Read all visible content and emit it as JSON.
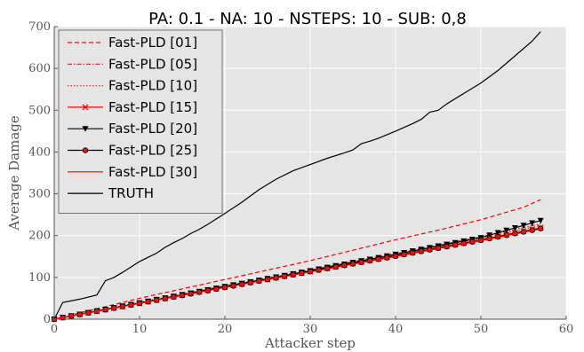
{
  "chart_data": {
    "type": "line",
    "title": "PA: 0.1 - NA: 10 - NSTEPS: 10 - SUB: 0,8",
    "xlabel": "Attacker step",
    "ylabel": "Average Damage",
    "xlim": [
      0,
      60
    ],
    "ylim": [
      0,
      700
    ],
    "xticks": [
      "0",
      "10",
      "20",
      "30",
      "40",
      "50",
      "60"
    ],
    "yticks": [
      "0",
      "100",
      "200",
      "300",
      "400",
      "500",
      "600",
      "700"
    ],
    "grid": true,
    "legend_position": "top-left",
    "background": "#e5e5e5",
    "series": [
      {
        "name": "Fast-PLD [01]",
        "color": "#ff0000",
        "dash": "dashed",
        "marker": "none",
        "x": [
          0,
          10,
          20,
          30,
          40,
          45,
          50,
          55,
          57
        ],
        "y": [
          0,
          50,
          95,
          140,
          190,
          213,
          238,
          268,
          286
        ]
      },
      {
        "name": "Fast-PLD [05]",
        "color": "#cc2222",
        "dash": "dashdot",
        "marker": "none",
        "x": [
          0,
          10,
          20,
          30,
          40,
          50,
          57
        ],
        "y": [
          0,
          40,
          80,
          118,
          157,
          197,
          228
        ]
      },
      {
        "name": "Fast-PLD [10]",
        "color": "#ff3333",
        "dash": "dotted",
        "marker": "none",
        "x": [
          0,
          10,
          20,
          30,
          40,
          50,
          57
        ],
        "y": [
          0,
          39,
          78,
          116,
          154,
          193,
          224
        ]
      },
      {
        "name": "Fast-PLD [15]",
        "color": "#ff0000",
        "dash": "solid",
        "marker": "x",
        "x": [
          0,
          10,
          20,
          30,
          40,
          50,
          57
        ],
        "y": [
          0,
          38,
          77,
          114,
          152,
          190,
          219
        ]
      },
      {
        "name": "Fast-PLD [20]",
        "color": "#000000",
        "dash": "solid",
        "marker": "triangle-down",
        "x": [
          0,
          10,
          20,
          30,
          40,
          50,
          57
        ],
        "y": [
          0,
          39,
          78,
          116,
          155,
          195,
          236
        ]
      },
      {
        "name": "Fast-PLD [25]",
        "color": "#000000",
        "dash": "solid",
        "marker": "circle",
        "x": [
          0,
          10,
          20,
          30,
          40,
          50,
          57
        ],
        "y": [
          0,
          38,
          76,
          114,
          151,
          189,
          217
        ]
      },
      {
        "name": "Fast-PLD [30]",
        "color": "#ff0000",
        "dash": "solid",
        "marker": "none",
        "x": [
          0,
          10,
          20,
          30,
          40,
          50,
          57
        ],
        "y": [
          0,
          38,
          76,
          113,
          150,
          188,
          216
        ]
      },
      {
        "name": "TRUTH",
        "color": "#000000",
        "dash": "solid",
        "marker": "none",
        "x": [
          0,
          1,
          3,
          5,
          6,
          7,
          8,
          9,
          10,
          11,
          12,
          13,
          14,
          15,
          16,
          17,
          18,
          19,
          20,
          22,
          24,
          26,
          28,
          30,
          32,
          34,
          35,
          36,
          37,
          38,
          40,
          42,
          43,
          44,
          45,
          46,
          48,
          50,
          52,
          54,
          56,
          57
        ],
        "y": [
          0,
          40,
          48,
          58,
          92,
          100,
          112,
          125,
          138,
          148,
          158,
          172,
          183,
          193,
          205,
          215,
          227,
          240,
          253,
          280,
          310,
          335,
          355,
          370,
          385,
          398,
          405,
          420,
          426,
          433,
          450,
          468,
          478,
          495,
          500,
          515,
          540,
          565,
          595,
          630,
          665,
          688
        ]
      }
    ]
  }
}
